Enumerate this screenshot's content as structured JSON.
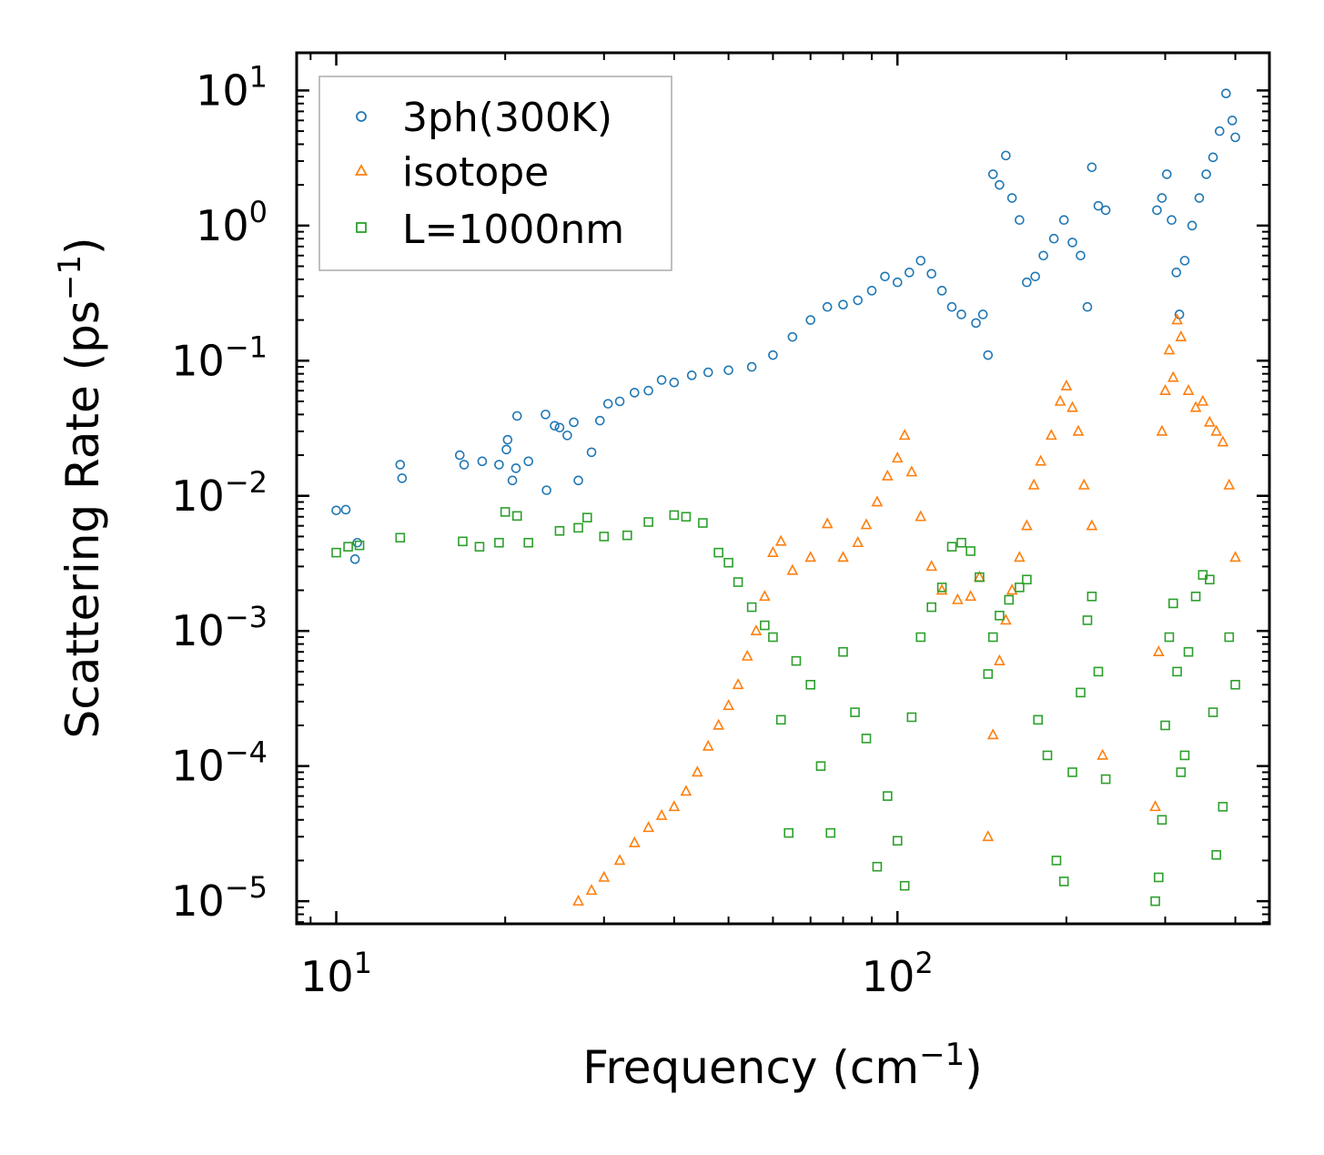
{
  "chart_data": {
    "type": "scatter",
    "title": "",
    "xlabel": "Frequency (cm",
    "xlabel_sup": "−1",
    "xlabel_end": ")",
    "ylabel": "Scattering Rate (ps",
    "ylabel_sup": "−1",
    "ylabel_end": ")",
    "xscale": "log",
    "yscale": "log",
    "xlim": [
      8.5,
      460
    ],
    "ylim": [
      6.8e-06,
      19
    ],
    "grid": false,
    "legend_position": "top-left",
    "x_ticks": [
      {
        "value": 10,
        "base": "10",
        "exp": "1"
      },
      {
        "value": 100,
        "base": "10",
        "exp": "2"
      }
    ],
    "y_ticks": [
      {
        "value": 10,
        "base": "10",
        "exp": "1"
      },
      {
        "value": 1,
        "base": "10",
        "exp": "0"
      },
      {
        "value": 0.1,
        "base": "10",
        "exp": "−1"
      },
      {
        "value": 0.01,
        "base": "10",
        "exp": "−2"
      },
      {
        "value": 0.001,
        "base": "10",
        "exp": "−3"
      },
      {
        "value": 0.0001,
        "base": "10",
        "exp": "−4"
      },
      {
        "value": 1e-05,
        "base": "10",
        "exp": "−5"
      }
    ],
    "series": [
      {
        "name": "3ph(300K)",
        "marker": "circle",
        "color": "#1f77b4",
        "points": [
          [
            10.0,
            0.0078
          ],
          [
            10.4,
            0.0079
          ],
          [
            10.9,
            0.0045
          ],
          [
            10.8,
            0.0034
          ],
          [
            13.0,
            0.017
          ],
          [
            13.1,
            0.0135
          ],
          [
            16.6,
            0.02
          ],
          [
            16.9,
            0.017
          ],
          [
            18.2,
            0.018
          ],
          [
            19.5,
            0.017
          ],
          [
            20.2,
            0.026
          ],
          [
            20.1,
            0.022
          ],
          [
            20.6,
            0.013
          ],
          [
            20.9,
            0.016
          ],
          [
            21.0,
            0.039
          ],
          [
            22.0,
            0.018
          ],
          [
            23.6,
            0.04
          ],
          [
            23.7,
            0.011
          ],
          [
            24.5,
            0.033
          ],
          [
            25.0,
            0.032
          ],
          [
            25.8,
            0.028
          ],
          [
            26.5,
            0.035
          ],
          [
            27.0,
            0.013
          ],
          [
            28.5,
            0.021
          ],
          [
            29.5,
            0.036
          ],
          [
            30.5,
            0.048
          ],
          [
            32.0,
            0.05
          ],
          [
            34.0,
            0.058
          ],
          [
            36.0,
            0.06
          ],
          [
            38.0,
            0.072
          ],
          [
            40.0,
            0.069
          ],
          [
            43.0,
            0.078
          ],
          [
            46.0,
            0.082
          ],
          [
            50.0,
            0.085
          ],
          [
            55.0,
            0.09
          ],
          [
            60.0,
            0.11
          ],
          [
            65.0,
            0.15
          ],
          [
            70.0,
            0.2
          ],
          [
            75.0,
            0.25
          ],
          [
            80.0,
            0.26
          ],
          [
            85.0,
            0.28
          ],
          [
            90.0,
            0.33
          ],
          [
            95.0,
            0.42
          ],
          [
            100.0,
            0.38
          ],
          [
            105.0,
            0.45
          ],
          [
            110.0,
            0.55
          ],
          [
            115.0,
            0.44
          ],
          [
            120.0,
            0.33
          ],
          [
            125.0,
            0.25
          ],
          [
            130.0,
            0.22
          ],
          [
            138.0,
            0.19
          ],
          [
            142.0,
            0.22
          ],
          [
            145.0,
            0.11
          ],
          [
            148.0,
            2.4
          ],
          [
            152.0,
            2.0
          ],
          [
            156.0,
            3.3
          ],
          [
            160.0,
            1.6
          ],
          [
            165.0,
            1.1
          ],
          [
            170.0,
            0.38
          ],
          [
            176.0,
            0.42
          ],
          [
            182.0,
            0.6
          ],
          [
            190.0,
            0.8
          ],
          [
            198.0,
            1.1
          ],
          [
            205.0,
            0.75
          ],
          [
            212.0,
            0.6
          ],
          [
            218.0,
            0.25
          ],
          [
            222.0,
            2.7
          ],
          [
            228.0,
            1.4
          ],
          [
            235.0,
            1.3
          ],
          [
            290.0,
            1.3
          ],
          [
            296.0,
            1.6
          ],
          [
            302.0,
            2.4
          ],
          [
            308.0,
            1.1
          ],
          [
            314.0,
            0.45
          ],
          [
            318.0,
            0.22
          ],
          [
            325.0,
            0.55
          ],
          [
            335.0,
            1.0
          ],
          [
            345.0,
            1.6
          ],
          [
            355.0,
            2.4
          ],
          [
            365.0,
            3.2
          ],
          [
            375.0,
            5.0
          ],
          [
            385.0,
            9.5
          ],
          [
            395.0,
            6.0
          ],
          [
            400.0,
            4.5
          ]
        ]
      },
      {
        "name": "isotope",
        "marker": "triangle",
        "color": "#ff7f0e",
        "points": [
          [
            27.0,
            1e-05
          ],
          [
            28.5,
            1.2e-05
          ],
          [
            30.0,
            1.5e-05
          ],
          [
            32.0,
            2e-05
          ],
          [
            34.0,
            2.7e-05
          ],
          [
            36.0,
            3.5e-05
          ],
          [
            38.0,
            4.3e-05
          ],
          [
            40.0,
            5e-05
          ],
          [
            42.0,
            6.5e-05
          ],
          [
            44.0,
            9e-05
          ],
          [
            46.0,
            0.00014
          ],
          [
            48.0,
            0.0002
          ],
          [
            50.0,
            0.00028
          ],
          [
            52.0,
            0.0004
          ],
          [
            54.0,
            0.00065
          ],
          [
            56.0,
            0.001
          ],
          [
            58.0,
            0.0018
          ],
          [
            60.0,
            0.0038
          ],
          [
            62.0,
            0.0046
          ],
          [
            65.0,
            0.0028
          ],
          [
            70.0,
            0.0035
          ],
          [
            75.0,
            0.0062
          ],
          [
            80.0,
            0.0035
          ],
          [
            85.0,
            0.0045
          ],
          [
            88.0,
            0.0061
          ],
          [
            92.0,
            0.009
          ],
          [
            96.0,
            0.014
          ],
          [
            100.0,
            0.019
          ],
          [
            103.0,
            0.028
          ],
          [
            106.0,
            0.015
          ],
          [
            110.0,
            0.007
          ],
          [
            115.0,
            0.003
          ],
          [
            120.0,
            0.002
          ],
          [
            128.0,
            0.0017
          ],
          [
            135.0,
            0.0018
          ],
          [
            140.0,
            0.0025
          ],
          [
            145.0,
            3e-05
          ],
          [
            148.0,
            0.00017
          ],
          [
            152.0,
            0.0006
          ],
          [
            156.0,
            0.0012
          ],
          [
            160.0,
            0.002
          ],
          [
            165.0,
            0.0035
          ],
          [
            170.0,
            0.006
          ],
          [
            175.0,
            0.012
          ],
          [
            180.0,
            0.018
          ],
          [
            188.0,
            0.028
          ],
          [
            195.0,
            0.05
          ],
          [
            200.0,
            0.065
          ],
          [
            205.0,
            0.045
          ],
          [
            210.0,
            0.03
          ],
          [
            215.0,
            0.012
          ],
          [
            222.0,
            0.006
          ],
          [
            232.0,
            0.00012
          ],
          [
            288.0,
            5e-05
          ],
          [
            292.0,
            0.0007
          ],
          [
            296.0,
            0.03
          ],
          [
            300.0,
            0.06
          ],
          [
            305.0,
            0.12
          ],
          [
            310.0,
            0.075
          ],
          [
            315.0,
            0.2
          ],
          [
            320.0,
            0.15
          ],
          [
            330.0,
            0.06
          ],
          [
            340.0,
            0.045
          ],
          [
            350.0,
            0.05
          ],
          [
            360.0,
            0.035
          ],
          [
            370.0,
            0.03
          ],
          [
            380.0,
            0.025
          ],
          [
            390.0,
            0.012
          ],
          [
            400.0,
            0.0035
          ]
        ]
      },
      {
        "name": "L=1000nm",
        "marker": "square",
        "color": "#2ca02c",
        "points": [
          [
            10.0,
            0.0038
          ],
          [
            10.5,
            0.0042
          ],
          [
            11.0,
            0.0043
          ],
          [
            13.0,
            0.0049
          ],
          [
            16.8,
            0.0046
          ],
          [
            18.0,
            0.0042
          ],
          [
            19.5,
            0.0045
          ],
          [
            20.0,
            0.0076
          ],
          [
            21.0,
            0.0071
          ],
          [
            22.0,
            0.0045
          ],
          [
            25.0,
            0.0055
          ],
          [
            27.0,
            0.0058
          ],
          [
            28.0,
            0.0069
          ],
          [
            30.0,
            0.005
          ],
          [
            33.0,
            0.0051
          ],
          [
            36.0,
            0.0064
          ],
          [
            40.0,
            0.0072
          ],
          [
            42.0,
            0.007
          ],
          [
            45.0,
            0.0063
          ],
          [
            48.0,
            0.0038
          ],
          [
            50.0,
            0.0032
          ],
          [
            52.0,
            0.0023
          ],
          [
            55.0,
            0.0015
          ],
          [
            58.0,
            0.0011
          ],
          [
            60.0,
            0.0009
          ],
          [
            62.0,
            0.00022
          ],
          [
            64.0,
            3.2e-05
          ],
          [
            66.0,
            0.0006
          ],
          [
            70.0,
            0.0004
          ],
          [
            73.0,
            0.0001
          ],
          [
            76.0,
            3.2e-05
          ],
          [
            80.0,
            0.0007
          ],
          [
            84.0,
            0.00025
          ],
          [
            88.0,
            0.00016
          ],
          [
            92.0,
            1.8e-05
          ],
          [
            96.0,
            6e-05
          ],
          [
            100.0,
            2.8e-05
          ],
          [
            103.0,
            1.3e-05
          ],
          [
            106.0,
            0.00023
          ],
          [
            110.0,
            0.0009
          ],
          [
            115.0,
            0.0015
          ],
          [
            120.0,
            0.0021
          ],
          [
            125.0,
            0.0042
          ],
          [
            130.0,
            0.0045
          ],
          [
            135.0,
            0.0039
          ],
          [
            140.0,
            0.0025
          ],
          [
            145.0,
            0.00048
          ],
          [
            148.0,
            0.0009
          ],
          [
            152.0,
            0.0013
          ],
          [
            158.0,
            0.0017
          ],
          [
            165.0,
            0.0021
          ],
          [
            170.0,
            0.0024
          ],
          [
            178.0,
            0.00022
          ],
          [
            185.0,
            0.00012
          ],
          [
            192.0,
            2e-05
          ],
          [
            198.0,
            1.4e-05
          ],
          [
            205.0,
            9e-05
          ],
          [
            212.0,
            0.00035
          ],
          [
            218.0,
            0.0012
          ],
          [
            222.0,
            0.0018
          ],
          [
            228.0,
            0.0005
          ],
          [
            235.0,
            8e-05
          ],
          [
            288.0,
            1e-05
          ],
          [
            292.0,
            1.5e-05
          ],
          [
            296.0,
            4e-05
          ],
          [
            300.0,
            0.0002
          ],
          [
            305.0,
            0.0009
          ],
          [
            310.0,
            0.0016
          ],
          [
            315.0,
            0.0005
          ],
          [
            320.0,
            9e-05
          ],
          [
            325.0,
            0.00012
          ],
          [
            330.0,
            0.0007
          ],
          [
            340.0,
            0.0018
          ],
          [
            350.0,
            0.0026
          ],
          [
            360.0,
            0.0024
          ],
          [
            365.0,
            0.00025
          ],
          [
            370.0,
            2.2e-05
          ],
          [
            380.0,
            5e-05
          ],
          [
            390.0,
            0.0009
          ],
          [
            400.0,
            0.0004
          ]
        ]
      }
    ]
  }
}
